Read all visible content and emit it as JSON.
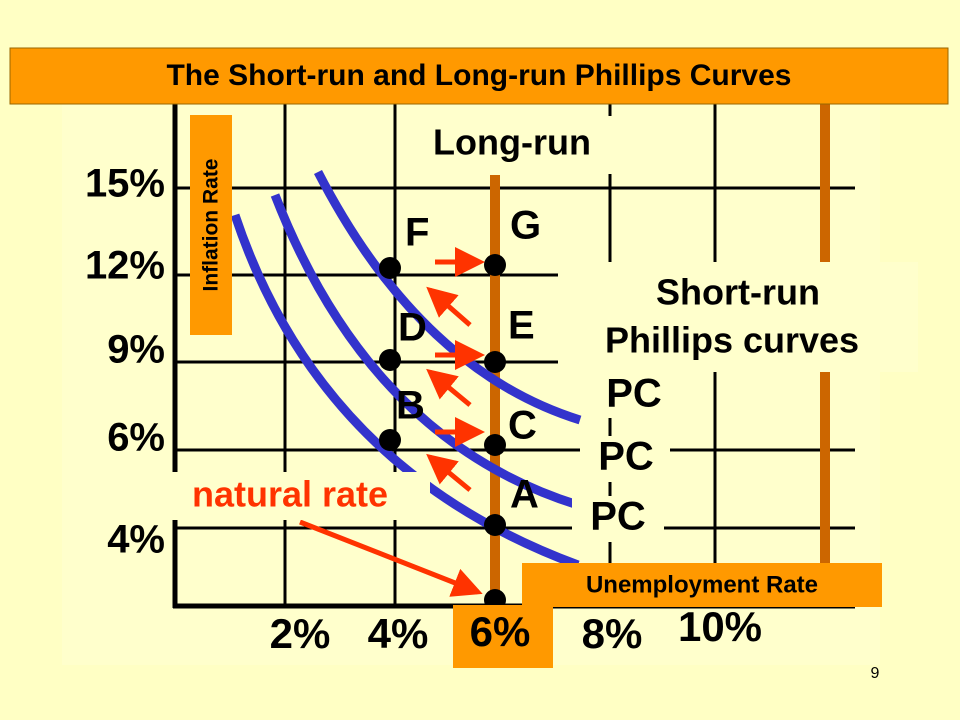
{
  "title": "The Short-run and Long-run Phillips Curves",
  "y_axis": {
    "label": "Inflation Rate",
    "ticks": [
      "15%",
      "12%",
      "9%",
      "6%",
      "4%"
    ]
  },
  "x_axis": {
    "label": "Unemployment Rate",
    "ticks": [
      "2%",
      "4%",
      "6%",
      "8%",
      "10%"
    ]
  },
  "long_run_label": "Long-run",
  "short_run_label": [
    "Short-run",
    "Phillips curves"
  ],
  "curve_labels": [
    "PC",
    "PC",
    "PC"
  ],
  "points": [
    "F",
    "G",
    "D",
    "E",
    "B",
    "C",
    "A"
  ],
  "natural_rate": "natural rate",
  "page_number": "9"
}
